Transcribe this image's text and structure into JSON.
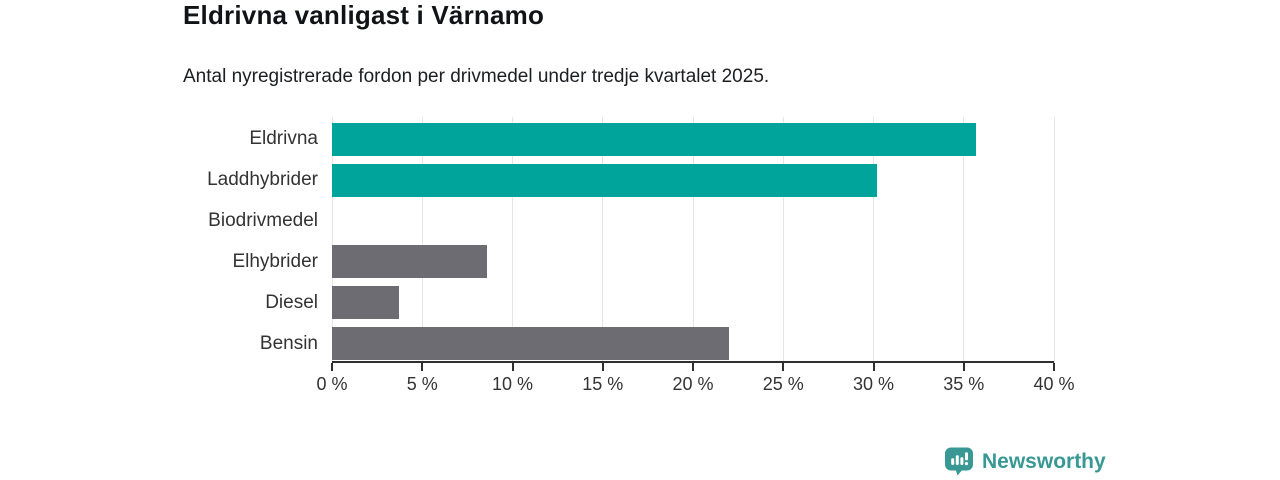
{
  "chart_data": {
    "type": "bar",
    "orientation": "horizontal",
    "title": "Eldrivna vanligast i Värnamo",
    "subtitle": "Antal nyregistrerade fordon per drivmedel under tredje kvartalet 2025.",
    "categories": [
      "Eldrivna",
      "Laddhybrider",
      "Biodrivmedel",
      "Elhybrider",
      "Diesel",
      "Bensin"
    ],
    "values": [
      35.7,
      30.2,
      0,
      8.6,
      3.7,
      22
    ],
    "unit": "%",
    "xlim": [
      0,
      40
    ],
    "x_ticks": [
      0,
      5,
      10,
      15,
      20,
      25,
      30,
      35,
      40
    ],
    "x_tick_labels": [
      "0 %",
      "5 %",
      "10 %",
      "15 %",
      "20 %",
      "25 %",
      "30 %",
      "35 %",
      "40 %"
    ],
    "bar_colors": [
      "#00a49b",
      "#00a49b",
      "#6c6c72",
      "#6c6c72",
      "#6c6c72",
      "#6c6c72"
    ],
    "grid": true,
    "legend_position": "none"
  },
  "colors": {
    "accent_teal": "#00a49b",
    "neutral_gray": "#6c6c72",
    "gridline": "#e4e4e4",
    "axis": "#2f2f2f",
    "logo_teal": "#399894"
  },
  "footer": {
    "brand": "Newsworthy"
  }
}
